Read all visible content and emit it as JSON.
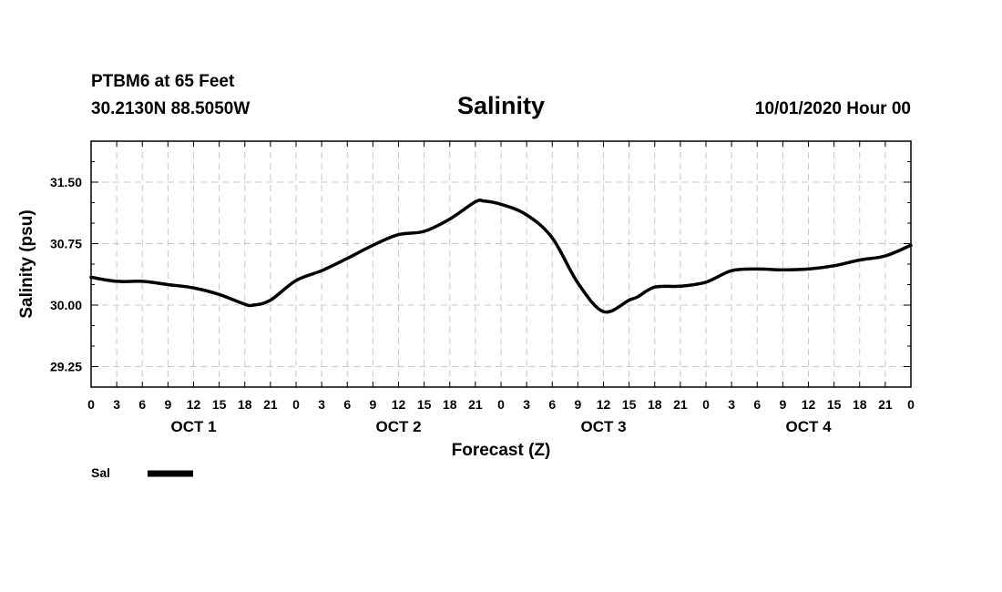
{
  "header": {
    "station": "PTBM6 at 65 Feet",
    "location": "30.2130N 88.5050W",
    "title": "Salinity",
    "datetime": "10/01/2020 Hour 00"
  },
  "chart_data": {
    "type": "line",
    "title": "Salinity",
    "xlabel": "Forecast (Z)",
    "ylabel": "Salinity (psu)",
    "ylim": [
      29.0,
      32.0
    ],
    "yticks": [
      29.25,
      30.0,
      30.75,
      31.5
    ],
    "ytick_labels": [
      "29.25",
      "30.00",
      "30.75",
      "31.50"
    ],
    "xlim": [
      0,
      96
    ],
    "x_unit": "forecast hour",
    "xtick_labels": [
      "0",
      "3",
      "6",
      "9",
      "12",
      "15",
      "18",
      "21",
      "0",
      "3",
      "6",
      "9",
      "12",
      "15",
      "18",
      "21",
      "0",
      "3",
      "6",
      "9",
      "12",
      "15",
      "18",
      "21",
      "0",
      "3",
      "6",
      "9",
      "12",
      "15",
      "18",
      "21",
      "0"
    ],
    "day_labels": [
      "OCT 1",
      "OCT 2",
      "OCT 3",
      "OCT 4"
    ],
    "grid": true,
    "legend_position": "bottom-left",
    "series": [
      {
        "name": "Sal",
        "color": "#000000",
        "x": [
          0,
          3,
          6,
          9,
          12,
          15,
          18,
          19,
          21,
          24,
          27,
          30,
          33,
          36,
          39,
          42,
          45,
          46,
          48,
          51,
          54,
          57,
          60,
          63,
          64,
          66,
          69,
          72,
          75,
          78,
          81,
          84,
          87,
          90,
          93,
          96
        ],
        "y": [
          30.34,
          30.29,
          30.29,
          30.25,
          30.21,
          30.13,
          30.01,
          30.0,
          30.06,
          30.3,
          30.42,
          30.57,
          30.73,
          30.86,
          30.9,
          31.05,
          31.26,
          31.27,
          31.23,
          31.1,
          30.82,
          30.27,
          29.92,
          30.06,
          30.1,
          30.22,
          30.23,
          30.28,
          30.42,
          30.44,
          30.43,
          30.44,
          30.48,
          30.55,
          30.6,
          30.73
        ]
      }
    ]
  },
  "legend": {
    "label": "Sal"
  }
}
